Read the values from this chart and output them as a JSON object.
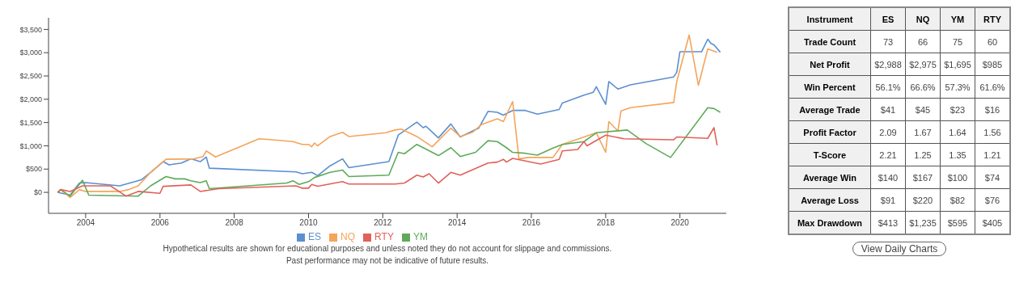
{
  "chart_data": [
    {
      "type": "line",
      "legend": "bottom",
      "xlim": [
        "2003-01",
        "2021-04"
      ],
      "ylim": [
        -450,
        3750
      ],
      "xticks": [
        "2004",
        "2006",
        "2008",
        "2010",
        "2012",
        "2014",
        "2016",
        "2018",
        "2020"
      ],
      "yticks": [
        {
          "value": 0,
          "label": "$0"
        },
        {
          "value": 500,
          "label": "$500"
        },
        {
          "value": 1000,
          "label": "$1,000"
        },
        {
          "value": 1500,
          "label": "$1,500"
        },
        {
          "value": 2000,
          "label": "$2,000"
        },
        {
          "value": 2500,
          "label": "$2,500"
        },
        {
          "value": 3000,
          "label": "$3,000"
        },
        {
          "value": 3500,
          "label": "$3,500"
        }
      ],
      "annotations": [
        "Hypothetical results are shown for educational purposes and unless noted they do not account for slippage and commissions.",
        "Past performance may not be indicative of future results."
      ],
      "series": [
        {
          "name": "ES",
          "color": "#5b8fd0",
          "x": [
            "2003-04",
            "2003-08",
            "2003-11",
            "2004-01",
            "2004-12",
            "2005-07",
            "2005-10",
            "2006-02",
            "2006-04",
            "2006-08",
            "2006-11",
            "2007-02",
            "2007-04",
            "2007-05",
            "2009-09",
            "2009-11",
            "2010-02",
            "2010-04",
            "2010-08",
            "2010-12",
            "2011-02",
            "2012-03",
            "2012-06",
            "2012-12",
            "2013-02",
            "2013-03",
            "2013-07",
            "2013-11",
            "2014-02",
            "2014-08",
            "2014-11",
            "2015-02",
            "2015-04",
            "2015-07",
            "2015-11",
            "2016-03",
            "2016-10",
            "2016-11",
            "2017-06",
            "2017-09",
            "2017-10",
            "2018-01",
            "2018-02",
            "2018-05",
            "2018-09",
            "2019-11",
            "2019-12",
            "2020-01",
            "2020-08",
            "2020-10",
            "2020-11",
            "2020-12",
            "2021-02"
          ],
          "values": [
            0,
            -60,
            200,
            210,
            140,
            270,
            430,
            660,
            590,
            630,
            720,
            660,
            760,
            520,
            440,
            400,
            430,
            360,
            570,
            720,
            530,
            660,
            1230,
            1510,
            1390,
            1420,
            1170,
            1470,
            1190,
            1380,
            1740,
            1720,
            1660,
            1760,
            1760,
            1680,
            1780,
            1920,
            2090,
            2150,
            2270,
            1890,
            2380,
            2220,
            2310,
            2480,
            2580,
            3020,
            3020,
            3290,
            3200,
            3170,
            3010
          ]
        },
        {
          "name": "NQ",
          "color": "#f5a45a",
          "x": [
            "2003-04",
            "2003-05",
            "2003-08",
            "2003-11",
            "2004-01",
            "2004-12",
            "2005-03",
            "2005-06",
            "2005-10",
            "2006-03",
            "2006-12",
            "2007-03",
            "2007-04",
            "2007-07",
            "2008-09",
            "2009-03",
            "2009-08",
            "2009-11",
            "2010-01",
            "2010-02",
            "2010-03",
            "2010-04",
            "2010-08",
            "2010-12",
            "2011-02",
            "2012-02",
            "2012-05",
            "2012-07",
            "2012-12",
            "2013-05",
            "2013-11",
            "2014-02",
            "2014-06",
            "2014-09",
            "2015-02",
            "2015-04",
            "2015-07",
            "2015-09",
            "2015-12",
            "2016-08",
            "2016-11",
            "2017-10",
            "2018-01",
            "2018-02",
            "2018-05",
            "2018-06",
            "2018-09",
            "2019-11",
            "2019-12",
            "2020-04",
            "2020-07",
            "2020-10",
            "2021-01"
          ],
          "values": [
            0,
            60,
            -110,
            60,
            20,
            20,
            60,
            140,
            430,
            710,
            720,
            770,
            890,
            760,
            1150,
            1120,
            1090,
            1030,
            1030,
            980,
            1060,
            1000,
            1200,
            1290,
            1200,
            1280,
            1340,
            1360,
            1200,
            980,
            1380,
            1200,
            1290,
            1460,
            1580,
            1520,
            1950,
            720,
            750,
            750,
            1030,
            1280,
            860,
            1520,
            1320,
            1750,
            1820,
            1930,
            2380,
            3380,
            2300,
            3080,
            3010
          ]
        },
        {
          "name": "YM",
          "color": "#5faa5a",
          "x": [
            "2003-04",
            "2003-05",
            "2003-08",
            "2003-12",
            "2004-02",
            "2005-06",
            "2005-10",
            "2006-03",
            "2006-06",
            "2006-09",
            "2006-11",
            "2007-02",
            "2007-04",
            "2007-05",
            "2009-06",
            "2009-08",
            "2009-10",
            "2010-01",
            "2010-03",
            "2010-08",
            "2010-12",
            "2011-02",
            "2012-03",
            "2012-06",
            "2012-08",
            "2012-12",
            "2013-02",
            "2013-07",
            "2013-11",
            "2014-02",
            "2014-07",
            "2014-11",
            "2015-02",
            "2015-05",
            "2015-07",
            "2015-11",
            "2016-03",
            "2016-08",
            "2016-11",
            "2017-06",
            "2017-10",
            "2018-08",
            "2019-02",
            "2019-10",
            "2020-10",
            "2020-12",
            "2021-02"
          ],
          "values": [
            0,
            60,
            -80,
            260,
            -60,
            -80,
            140,
            340,
            290,
            290,
            250,
            210,
            250,
            80,
            200,
            250,
            170,
            230,
            320,
            430,
            480,
            340,
            370,
            860,
            830,
            1030,
            960,
            790,
            960,
            770,
            860,
            1110,
            1090,
            960,
            860,
            840,
            800,
            950,
            1030,
            1090,
            1280,
            1340,
            1050,
            750,
            1820,
            1800,
            1720
          ]
        },
        {
          "name": "RTY",
          "color": "#e0625a",
          "x": [
            "2003-04",
            "2003-05",
            "2003-08",
            "2003-12",
            "2004-09",
            "2005-02",
            "2005-06",
            "2006-01",
            "2006-02",
            "2006-11",
            "2007-02",
            "2007-08",
            "2009-09",
            "2009-11",
            "2010-01",
            "2010-02",
            "2010-04",
            "2010-12",
            "2011-02",
            "2012-05",
            "2012-08",
            "2012-12",
            "2013-02",
            "2013-04",
            "2013-07",
            "2013-11",
            "2014-02",
            "2014-11",
            "2015-02",
            "2015-04",
            "2015-05",
            "2015-07",
            "2016-04",
            "2016-10",
            "2016-11",
            "2017-04",
            "2017-06",
            "2017-07",
            "2018-01",
            "2018-07",
            "2019-11",
            "2019-12",
            "2020-10",
            "2020-12",
            "2021-01"
          ],
          "values": [
            0,
            60,
            20,
            140,
            140,
            -80,
            20,
            -20,
            130,
            160,
            20,
            80,
            140,
            90,
            90,
            170,
            130,
            230,
            180,
            180,
            200,
            370,
            330,
            400,
            200,
            430,
            370,
            630,
            650,
            710,
            650,
            730,
            610,
            710,
            890,
            920,
            1090,
            1000,
            1230,
            1150,
            1130,
            1190,
            1160,
            1390,
            1010
          ]
        }
      ]
    },
    {
      "type": "other",
      "xlabel": "Instrument",
      "categories": [
        "ES",
        "NQ",
        "YM",
        "RTY"
      ],
      "y_categories": [
        "Trade Count",
        "Net Profit",
        "Win Percent",
        "Average Trade",
        "Profit Factor",
        "T-Score",
        "Average Win",
        "Average Loss",
        "Max Drawdown"
      ],
      "cell_labels": [
        [
          "73",
          "66",
          "75",
          "60"
        ],
        [
          "$2,988",
          "$2,975",
          "$1,695",
          "$985"
        ],
        [
          "56.1%",
          "66.6%",
          "57.3%",
          "61.6%"
        ],
        [
          "$41",
          "$45",
          "$23",
          "$16"
        ],
        [
          "2.09",
          "1.67",
          "1.64",
          "1.56"
        ],
        [
          "2.21",
          "1.25",
          "1.35",
          "1.21"
        ],
        [
          "$140",
          "$167",
          "$100",
          "$74"
        ],
        [
          "$91",
          "$220",
          "$82",
          "$76"
        ],
        [
          "$413",
          "$1,235",
          "$595",
          "$405"
        ]
      ],
      "annotations": [
        "View Daily Charts"
      ]
    }
  ]
}
